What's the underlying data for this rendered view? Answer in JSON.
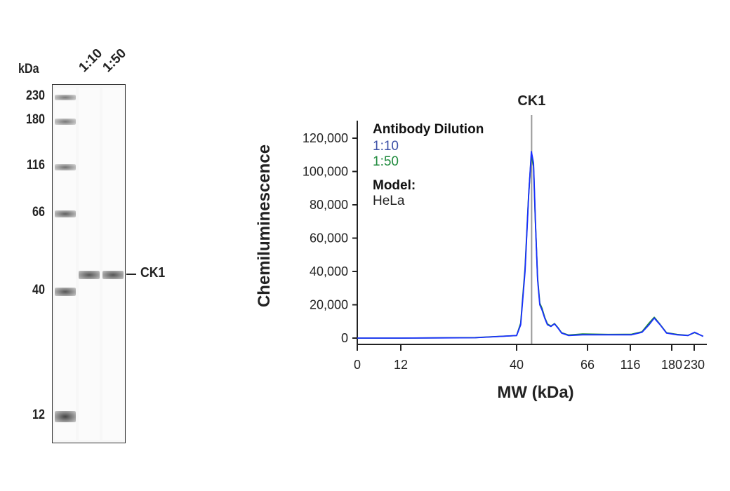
{
  "blot": {
    "unit_label": "kDa",
    "lane_labels": [
      "1:10",
      "1:50"
    ],
    "markers": [
      "230",
      "180",
      "116",
      "66",
      "40",
      "12"
    ],
    "band_label": "CK1"
  },
  "chart_data": {
    "type": "line",
    "peak_label": "CK1",
    "peak_x": 45.5,
    "xlabel": "MW (kDa)",
    "ylabel": "Chemiluminescence",
    "x_ticks": [
      0,
      12,
      40,
      66,
      116,
      180,
      230
    ],
    "x_tick_labels": [
      "0",
      "12",
      "40",
      "66",
      "116",
      "180",
      "230"
    ],
    "x_scale": "non-linear (tick-spaced)",
    "y_ticks": [
      0,
      20000,
      40000,
      60000,
      80000,
      100000,
      120000
    ],
    "y_tick_labels": [
      "0",
      "20,000",
      "40,000",
      "60,000",
      "80,000",
      "100,000",
      "120,000"
    ],
    "ylim": [
      0,
      120000
    ],
    "grid": false,
    "legend": {
      "title": "Antibody Dilution",
      "placement": "top-left",
      "model_title": "Model:",
      "model_value": "HeLa"
    },
    "series": [
      {
        "name": "1:10",
        "color": "#1a2fff",
        "legend_color": "#3b4fa6",
        "points": [
          [
            0,
            0
          ],
          [
            12,
            0
          ],
          [
            30,
            200
          ],
          [
            40,
            1500
          ],
          [
            41.5,
            8000
          ],
          [
            43.1,
            40000
          ],
          [
            44.4,
            85000
          ],
          [
            45.4,
            112000
          ],
          [
            46.2,
            105000
          ],
          [
            46.9,
            70000
          ],
          [
            47.7,
            35000
          ],
          [
            48.5,
            20000
          ],
          [
            49.3,
            17000
          ],
          [
            50.3,
            12000
          ],
          [
            51.3,
            8000
          ],
          [
            52.6,
            7000
          ],
          [
            53.9,
            8500
          ],
          [
            55.2,
            6000
          ],
          [
            56.5,
            3000
          ],
          [
            59.1,
            1500
          ],
          [
            64.2,
            2000
          ],
          [
            90,
            2000
          ],
          [
            118,
            2000
          ],
          [
            134,
            3500
          ],
          [
            145,
            8000
          ],
          [
            153,
            12000
          ],
          [
            162,
            8000
          ],
          [
            172,
            3000
          ],
          [
            192,
            2000
          ],
          [
            216,
            1500
          ],
          [
            231,
            3500
          ],
          [
            250,
            1000
          ]
        ]
      },
      {
        "name": "1:50",
        "color": "#1e8a3c",
        "legend_color": "#1e8a3c",
        "points": [
          [
            0,
            0
          ],
          [
            12,
            0
          ],
          [
            30,
            300
          ],
          [
            40,
            1500
          ],
          [
            41.5,
            9000
          ],
          [
            43.1,
            42000
          ],
          [
            44.4,
            86000
          ],
          [
            45.4,
            110000
          ],
          [
            46.2,
            103000
          ],
          [
            46.9,
            69000
          ],
          [
            47.7,
            36000
          ],
          [
            48.5,
            21000
          ],
          [
            49.3,
            18000
          ],
          [
            50.3,
            12500
          ],
          [
            51.3,
            8500
          ],
          [
            52.6,
            7200
          ],
          [
            53.9,
            8700
          ],
          [
            55.2,
            6200
          ],
          [
            56.5,
            3200
          ],
          [
            59.1,
            1800
          ],
          [
            64.2,
            2500
          ],
          [
            90,
            2200
          ],
          [
            118,
            2300
          ],
          [
            134,
            3800
          ],
          [
            145,
            9000
          ],
          [
            153,
            12500
          ],
          [
            162,
            8200
          ],
          [
            172,
            3200
          ],
          [
            192,
            2200
          ],
          [
            216,
            1600
          ],
          [
            231,
            3300
          ],
          [
            250,
            1100
          ]
        ]
      }
    ]
  }
}
